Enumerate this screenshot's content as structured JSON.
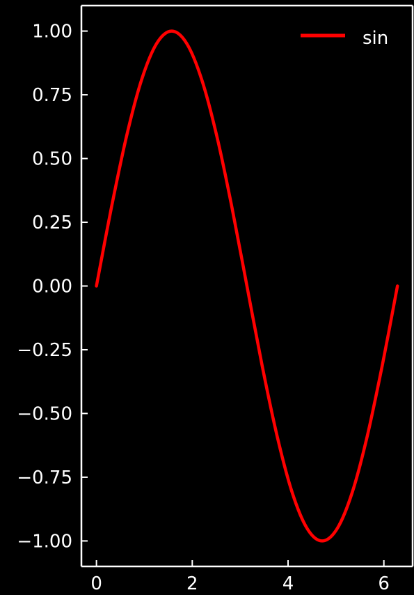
{
  "chart_data": {
    "type": "line",
    "title": "",
    "xlabel": "",
    "ylabel": "",
    "xlim": [
      -0.314,
      6.6
    ],
    "ylim": [
      -1.1,
      1.1
    ],
    "x_ticks": [
      0,
      2,
      4,
      6
    ],
    "x_tick_labels": [
      "0",
      "2",
      "4",
      "6"
    ],
    "y_ticks": [
      1.0,
      0.75,
      0.5,
      0.25,
      0.0,
      -0.25,
      -0.5,
      -0.75,
      -1.0
    ],
    "y_tick_labels": [
      "1.00",
      "0.75",
      "0.50",
      "0.25",
      "0.00",
      "−0.25",
      "−0.50",
      "−0.75",
      "−1.00"
    ],
    "grid": false,
    "legend_position": "top-right",
    "background_color": "#000000",
    "axis_color": "#ffffff",
    "series": [
      {
        "name": "sin",
        "color": "#ff0000",
        "x": [
          0.0,
          0.3142,
          0.6283,
          0.9425,
          1.2566,
          1.5708,
          1.885,
          2.1991,
          2.5133,
          2.8274,
          3.1416,
          3.4558,
          3.7699,
          4.0841,
          4.3982,
          4.7124,
          5.0265,
          5.3407,
          5.6549,
          5.969,
          6.2832
        ],
        "y": [
          0.0,
          0.309,
          0.5878,
          0.809,
          0.9511,
          1.0,
          0.9511,
          0.809,
          0.5878,
          0.309,
          0.0,
          -0.309,
          -0.5878,
          -0.809,
          -0.9511,
          -1.0,
          -0.9511,
          -0.809,
          -0.5878,
          -0.309,
          0.0
        ]
      }
    ]
  }
}
